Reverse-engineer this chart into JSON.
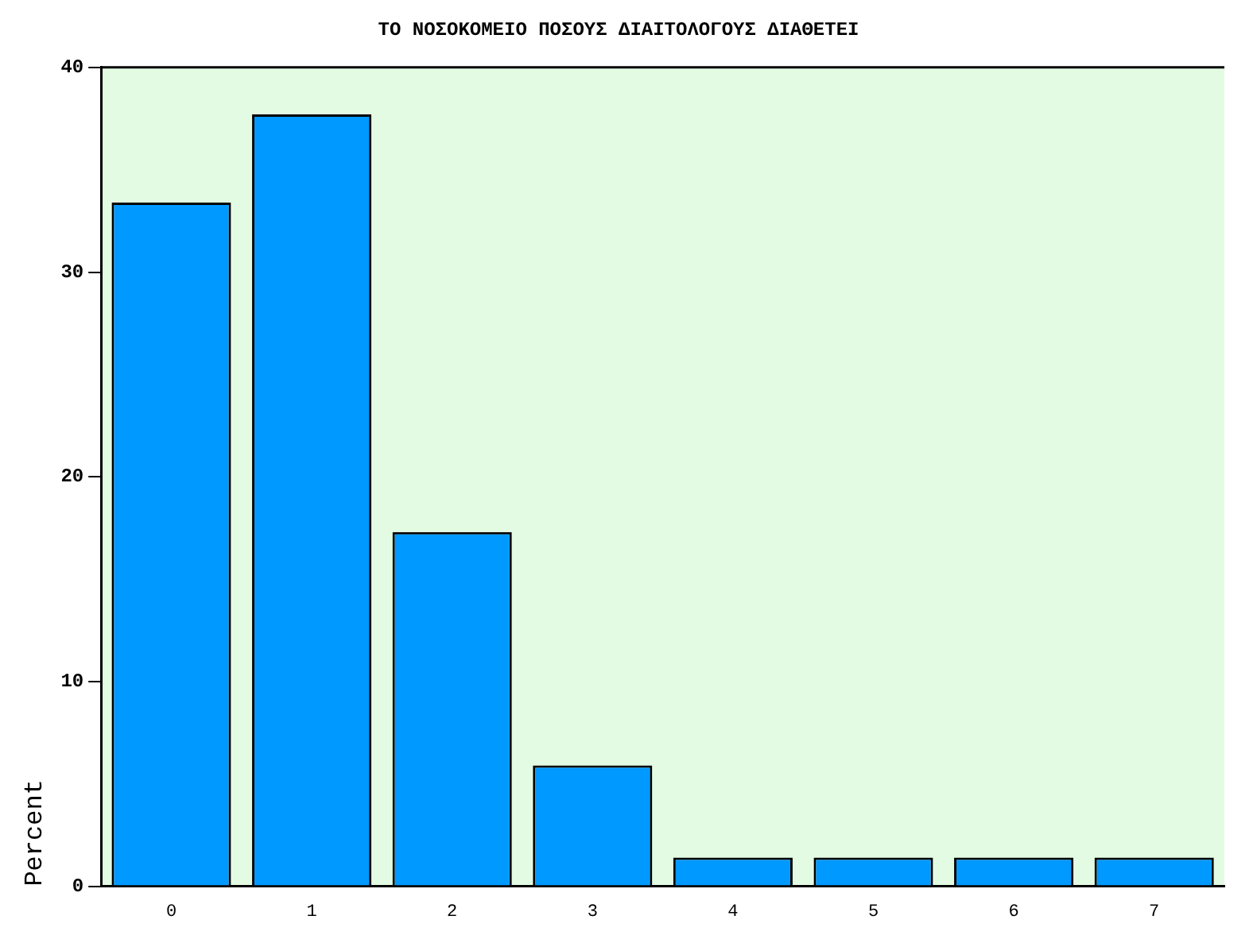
{
  "chart_data": {
    "type": "bar",
    "title": "ΤΟ ΝΟΣΟΚΟΜΕΙΟ ΠΟΣΟΥΣ ΔΙΑΙΤΟΛΟΓΟΥΣ ΔΙΑΘΕΤΕΙ",
    "ylabel": "Percent",
    "categories": [
      "0",
      "1",
      "2",
      "3",
      "4",
      "5",
      "6",
      "7"
    ],
    "values": [
      33.4,
      37.7,
      17.3,
      5.9,
      1.4,
      1.4,
      1.4,
      1.4
    ],
    "color": "#0099ff",
    "ylim": [
      0,
      40
    ],
    "yticks": [
      0,
      10,
      20,
      30,
      40
    ],
    "grid": false,
    "legend": false
  }
}
